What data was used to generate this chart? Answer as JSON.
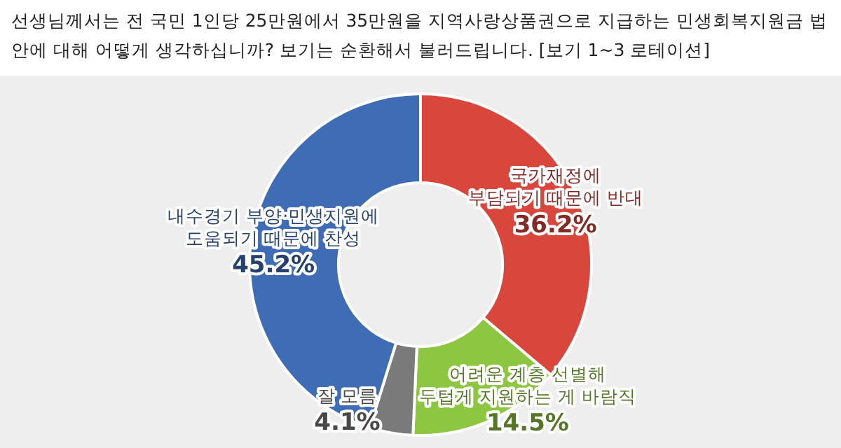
{
  "chart_data": {
    "type": "donut",
    "title": "선생님께서는 전 국민 1인당 25만원에서 35만원을 지역사랑상품권으로 지급하는 민생회복지원금 법안에 대해 어떻게 생각하십니까? 보기는 순환해서 불러드립니다. [보기 1~3 로테이션]",
    "categories": [
      "국가재정에\n부담되기 때문에 반대",
      "어려운 계층 선별해\n두텁게 지원하는 게 바람직",
      "잘 모름",
      "내수경기 부양·민생지원에\n도움되기 때문에 찬성"
    ],
    "values": [
      36.2,
      14.5,
      4.1,
      45.2
    ],
    "colors": [
      "#d9463b",
      "#8dc641",
      "#7a7a7a",
      "#3f6db5"
    ],
    "value_labels": [
      "36.2%",
      "14.5%",
      "4.1%",
      "45.2%"
    ],
    "legend": false
  }
}
